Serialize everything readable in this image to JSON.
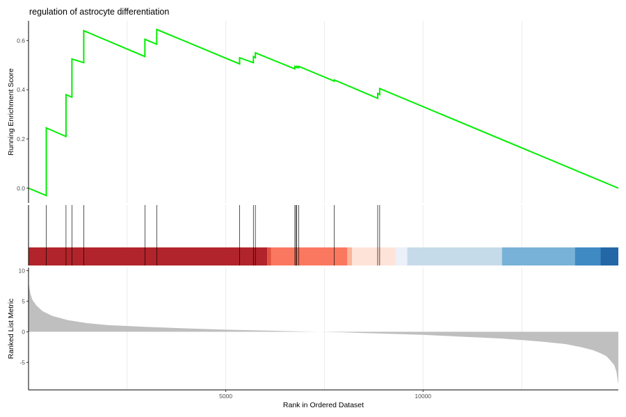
{
  "chart_data": {
    "type": "line",
    "title": "regulation of astrocyte differentiation",
    "xlabel": "Rank in Ordered Dataset",
    "x_ticks": [
      5000,
      10000
    ],
    "xlim": [
      0,
      14950
    ],
    "grid": "vertical",
    "top_panel": {
      "ylabel": "Running Enrichment Score",
      "ylim": [
        -0.06,
        0.68
      ],
      "y_ticks": [
        0.0,
        0.2,
        0.4,
        0.6
      ],
      "line_color": "#00ee00",
      "series": [
        {
          "x": [
            0,
            450,
            450,
            950,
            950,
            1100,
            1100,
            1400,
            1400,
            2950,
            2950,
            3250,
            3250,
            5350,
            5350,
            5700,
            5700,
            5750,
            5750,
            6750,
            6750,
            6800,
            6800,
            6850,
            6850,
            7750,
            7750,
            8850,
            8850,
            8900,
            8900,
            14950
          ],
          "y": [
            0.0,
            -0.03,
            0.245,
            0.21,
            0.38,
            0.37,
            0.525,
            0.51,
            0.64,
            0.535,
            0.605,
            0.585,
            0.645,
            0.505,
            0.53,
            0.51,
            0.535,
            0.53,
            0.55,
            0.485,
            0.495,
            0.49,
            0.495,
            0.49,
            0.495,
            0.435,
            0.44,
            0.365,
            0.385,
            0.38,
            0.405,
            0.0
          ]
        }
      ]
    },
    "hits": [
      450,
      950,
      1100,
      1400,
      2950,
      3250,
      5350,
      5700,
      5750,
      6750,
      6780,
      6800,
      6850,
      7750,
      8850,
      8900
    ],
    "color_bar": [
      {
        "from": 0,
        "to": 6050,
        "color": "#b2242b"
      },
      {
        "from": 6050,
        "to": 6150,
        "color": "#e0513d"
      },
      {
        "from": 6150,
        "to": 8080,
        "color": "#fb7860"
      },
      {
        "from": 8080,
        "to": 8200,
        "color": "#fcb59a"
      },
      {
        "from": 8200,
        "to": 9300,
        "color": "#fde3d8"
      },
      {
        "from": 9300,
        "to": 9600,
        "color": "#ecf0f8"
      },
      {
        "from": 9600,
        "to": 12000,
        "color": "#c6dbe9"
      },
      {
        "from": 12000,
        "to": 13850,
        "color": "#78b2d8"
      },
      {
        "from": 13850,
        "to": 14500,
        "color": "#3f8ac3"
      },
      {
        "from": 14500,
        "to": 14950,
        "color": "#2367a7"
      }
    ],
    "bottom_panel": {
      "ylabel": "Ranked List Metric",
      "ylim": [
        -9.5,
        10.5
      ],
      "y_ticks": [
        10,
        5,
        0,
        -5
      ],
      "fill_color": "#bfbfbf",
      "series": [
        {
          "x": [
            0,
            50,
            100,
            200,
            350,
            600,
            1000,
            1500,
            2000,
            3000,
            4000,
            5000,
            6000,
            7000,
            7350,
            8000,
            9000,
            10000,
            11000,
            12000,
            13000,
            13600,
            14000,
            14300,
            14500,
            14650,
            14750,
            14850,
            14900,
            14950
          ],
          "y": [
            8.0,
            6.2,
            5.2,
            4.3,
            3.4,
            2.6,
            1.9,
            1.4,
            1.1,
            0.8,
            0.55,
            0.35,
            0.2,
            0.05,
            0.0,
            -0.1,
            -0.3,
            -0.5,
            -0.8,
            -1.1,
            -1.6,
            -2.0,
            -2.5,
            -3.0,
            -3.5,
            -4.0,
            -4.7,
            -5.5,
            -6.5,
            -8.6
          ]
        }
      ]
    }
  }
}
